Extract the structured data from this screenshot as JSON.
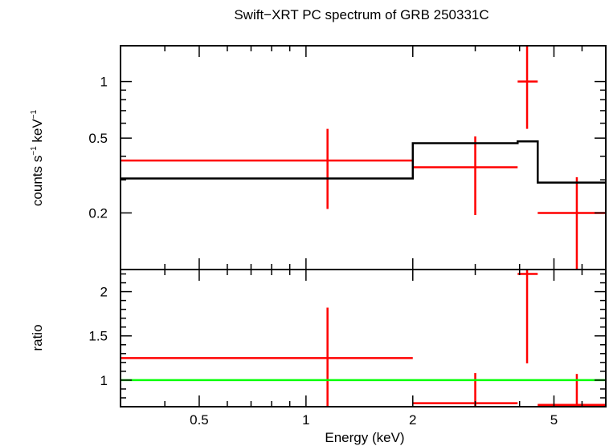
{
  "chart_data": [
    {
      "type": "line",
      "title": "Swift−XRT PC spectrum of GRB 250331C",
      "ylabel_main": "counts s",
      "ylabel_exp1": "−1",
      "ylabel_mid": " keV",
      "ylabel_exp2": "−1",
      "xscale": "log",
      "yscale": "log",
      "xlim": [
        0.3,
        7.0
      ],
      "ylim": [
        0.1,
        1.55
      ],
      "yticks": [
        {
          "value": 0.2,
          "label": "0.2"
        },
        {
          "value": 0.5,
          "label": "0.5"
        },
        {
          "value": 1,
          "label": "1"
        }
      ],
      "series": [
        {
          "kind": "errorbars",
          "color": "#ff0000",
          "points": [
            {
              "x": 1.15,
              "xlo": 0.3,
              "xhi": 2.0,
              "y": 0.38,
              "ylo": 0.21,
              "yhi": 0.56
            },
            {
              "x": 3.0,
              "xlo": 2.0,
              "xhi": 3.95,
              "y": 0.35,
              "ylo": 0.195,
              "yhi": 0.51
            },
            {
              "x": 4.2,
              "xlo": 3.95,
              "xhi": 4.5,
              "y": 1.0,
              "ylo": 0.56,
              "yhi": 1.55
            },
            {
              "x": 5.8,
              "xlo": 4.5,
              "xhi": 7.0,
              "y": 0.2,
              "ylo": 0.1,
              "yhi": 0.31
            }
          ]
        },
        {
          "kind": "model-steps",
          "color": "#000000",
          "steps": [
            {
              "xlo": 0.3,
              "xhi": 2.0,
              "y": 0.305
            },
            {
              "xlo": 2.0,
              "xhi": 3.95,
              "y": 0.47
            },
            {
              "xlo": 3.95,
              "xhi": 4.5,
              "y": 0.48
            },
            {
              "xlo": 4.5,
              "xhi": 7.0,
              "y": 0.29
            }
          ]
        }
      ]
    },
    {
      "type": "line",
      "ylabel": "ratio",
      "xlabel": "Energy (keV)",
      "xscale": "log",
      "xlim": [
        0.3,
        7.0
      ],
      "ylim": [
        0.7,
        2.25
      ],
      "xticks": [
        {
          "value": 0.5,
          "label": "0.5"
        },
        {
          "value": 1,
          "label": "1"
        },
        {
          "value": 2,
          "label": "2"
        },
        {
          "value": 5,
          "label": "5"
        }
      ],
      "yticks": [
        {
          "value": 1,
          "label": "1"
        },
        {
          "value": 1.5,
          "label": "1.5"
        },
        {
          "value": 2,
          "label": "2"
        }
      ],
      "series": [
        {
          "kind": "errorbars",
          "color": "#ff0000",
          "points": [
            {
              "x": 1.15,
              "xlo": 0.3,
              "xhi": 2.0,
              "y": 1.25,
              "ylo": 0.7,
              "yhi": 1.82
            },
            {
              "x": 3.0,
              "xlo": 2.0,
              "xhi": 3.95,
              "y": 0.74,
              "ylo": 0.7,
              "yhi": 1.08
            },
            {
              "x": 4.2,
              "xlo": 3.95,
              "xhi": 4.5,
              "y": 2.2,
              "ylo": 1.19,
              "yhi": 2.25
            },
            {
              "x": 5.8,
              "xlo": 4.5,
              "xhi": 7.0,
              "y": 0.72,
              "ylo": 0.7,
              "yhi": 1.07
            }
          ]
        },
        {
          "kind": "reference-line",
          "color": "#00ff00",
          "y": 1
        }
      ]
    }
  ]
}
